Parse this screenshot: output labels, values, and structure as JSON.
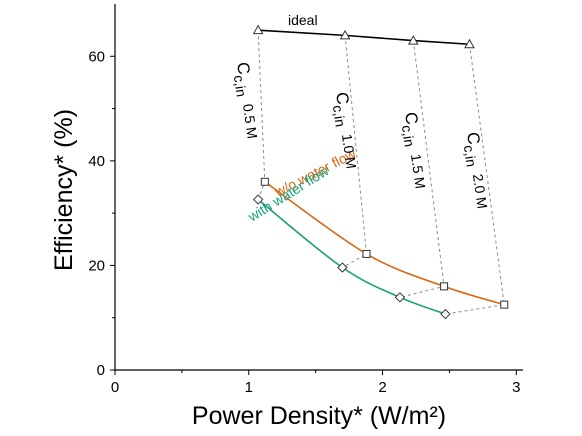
{
  "chart_data": {
    "type": "line",
    "xlabel": "Power Density* (W/m²)",
    "ylabel": "Efficiency* (%)",
    "xlim": [
      0,
      3.05
    ],
    "ylim": [
      0,
      70
    ],
    "xticks": [
      0,
      1,
      2,
      3
    ],
    "yticks": [
      0,
      20,
      40,
      60
    ],
    "grid": false,
    "series": [
      {
        "name": "ideal",
        "color": "#000000",
        "marker": "triangle",
        "points": [
          [
            1.07,
            65.0
          ],
          [
            1.72,
            64.0
          ],
          [
            2.23,
            63.0
          ],
          [
            2.65,
            62.3
          ]
        ]
      },
      {
        "name": "w/o water flow",
        "color": "#d9650f",
        "marker": "square",
        "points": [
          [
            1.12,
            36.0
          ],
          [
            1.88,
            22.2
          ],
          [
            2.46,
            16.0
          ],
          [
            2.91,
            12.5
          ]
        ]
      },
      {
        "name": "with water flow",
        "color": "#17a07a",
        "marker": "diamond",
        "points": [
          [
            1.07,
            32.6
          ],
          [
            1.7,
            19.6
          ],
          [
            2.13,
            13.9
          ],
          [
            2.47,
            10.7
          ]
        ]
      }
    ],
    "concentration_labels": [
      {
        "main": "C",
        "sub": "c,in",
        "value": "0.5 M"
      },
      {
        "main": "C",
        "sub": "c,in",
        "value": "1.0 M"
      },
      {
        "main": "C",
        "sub": "c,in",
        "value": "1.5 M"
      },
      {
        "main": "C",
        "sub": "c,in",
        "value": "2.0 M"
      }
    ]
  }
}
